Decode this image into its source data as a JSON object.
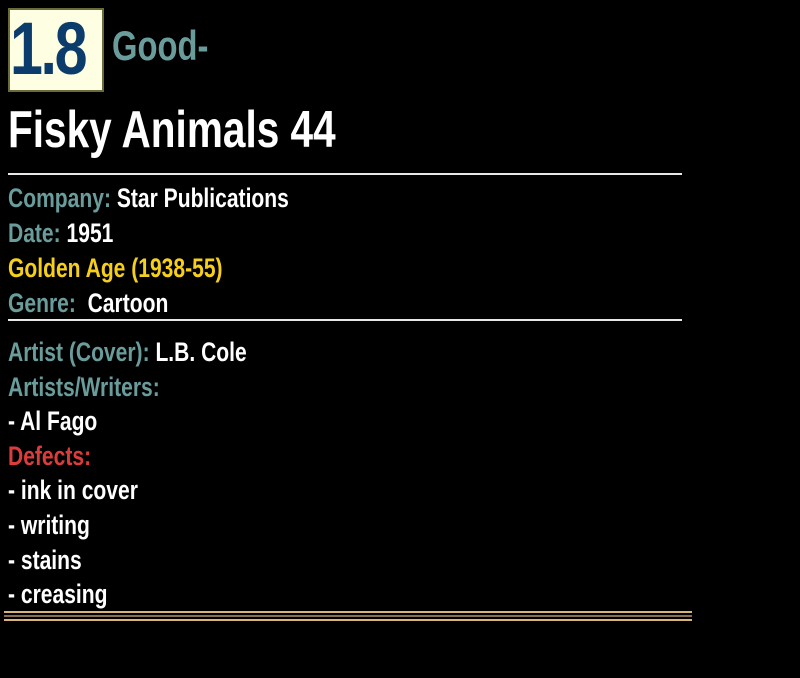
{
  "grade": {
    "value": "1.8",
    "label": "Good-"
  },
  "title": "Fisky Animals 44",
  "details": {
    "company_label": "Company:",
    "company": "Star Publications",
    "date_label": "Date:",
    "date": "1951",
    "era": "Golden Age (1938-55)",
    "genre_label": "Genre:",
    "genre": "Cartoon"
  },
  "credits": {
    "cover_artist_label": "Artist (Cover):",
    "cover_artist": "L.B. Cole",
    "artists_writers_label": "Artists/Writers:",
    "artists_writers": [
      "- Al Fago"
    ]
  },
  "defects": {
    "label": "Defects:",
    "items": [
      "- ink in cover",
      "- writing",
      "- stains",
      "- creasing"
    ]
  },
  "colors": {
    "label": "#6a9c9c",
    "era": "#f5cf1a",
    "defects": "#dd3c3c",
    "grade_number": "#0c3c6c",
    "grade_box": "#fefee2"
  }
}
